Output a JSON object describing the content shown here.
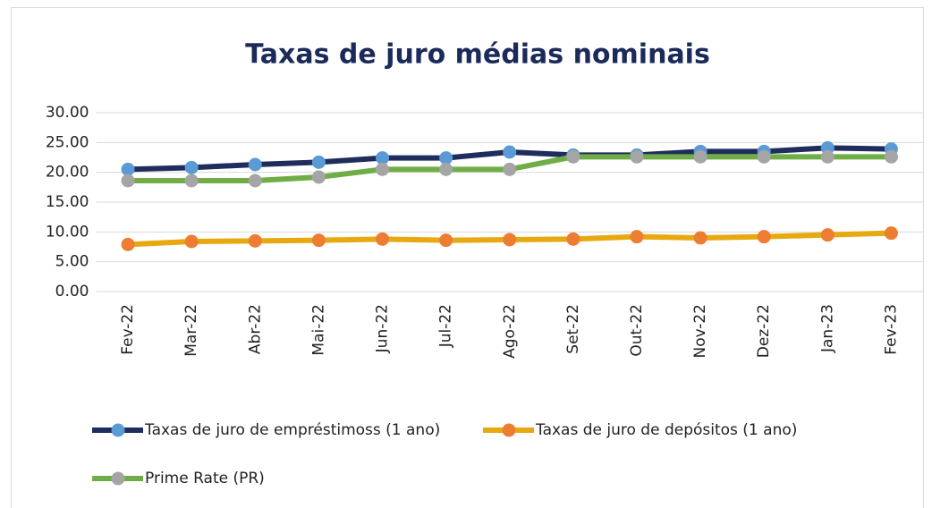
{
  "chart_data": {
    "type": "line",
    "title": "Taxas de juro médias nominais",
    "categories": [
      "Fev-22",
      "Mar-22",
      "Abr-22",
      "Mai-22",
      "Jun-22",
      "Jul-22",
      "Ago-22",
      "Set-22",
      "Out-22",
      "Nov-22",
      "Dez-22",
      "Jan-23",
      "Fev-23"
    ],
    "series": [
      {
        "name": "Taxas de juro de empréstimoss (1 ano)",
        "color": "#1f2d5c",
        "marker_color": "#5b9bd5",
        "values": [
          20.5,
          20.8,
          21.3,
          21.7,
          22.4,
          22.4,
          23.4,
          22.9,
          22.9,
          23.5,
          23.5,
          24.1,
          23.9
        ]
      },
      {
        "name": "Taxas de juro de depósitos (1 ano)",
        "color": "#e7a90f",
        "marker_color": "#ed7d31",
        "values": [
          7.9,
          8.4,
          8.5,
          8.6,
          8.8,
          8.6,
          8.7,
          8.8,
          9.2,
          9.0,
          9.2,
          9.5,
          9.8
        ]
      },
      {
        "name": "Prime Rate (PR)",
        "color": "#70ad47",
        "marker_color": "#a5a5a5",
        "values": [
          18.6,
          18.6,
          18.6,
          19.2,
          20.5,
          20.5,
          20.5,
          22.6,
          22.6,
          22.6,
          22.6,
          22.6,
          22.6
        ]
      }
    ],
    "ylim": [
      0,
      30
    ],
    "yticks": [
      {
        "value": 0,
        "label": "0.00"
      },
      {
        "value": 5,
        "label": "5.00"
      },
      {
        "value": 10,
        "label": "10.00"
      },
      {
        "value": 15,
        "label": "15.00"
      },
      {
        "value": 20,
        "label": "20.00"
      },
      {
        "value": 25,
        "label": "25.00"
      },
      {
        "value": 30,
        "label": "30.00"
      }
    ],
    "grid": true
  }
}
